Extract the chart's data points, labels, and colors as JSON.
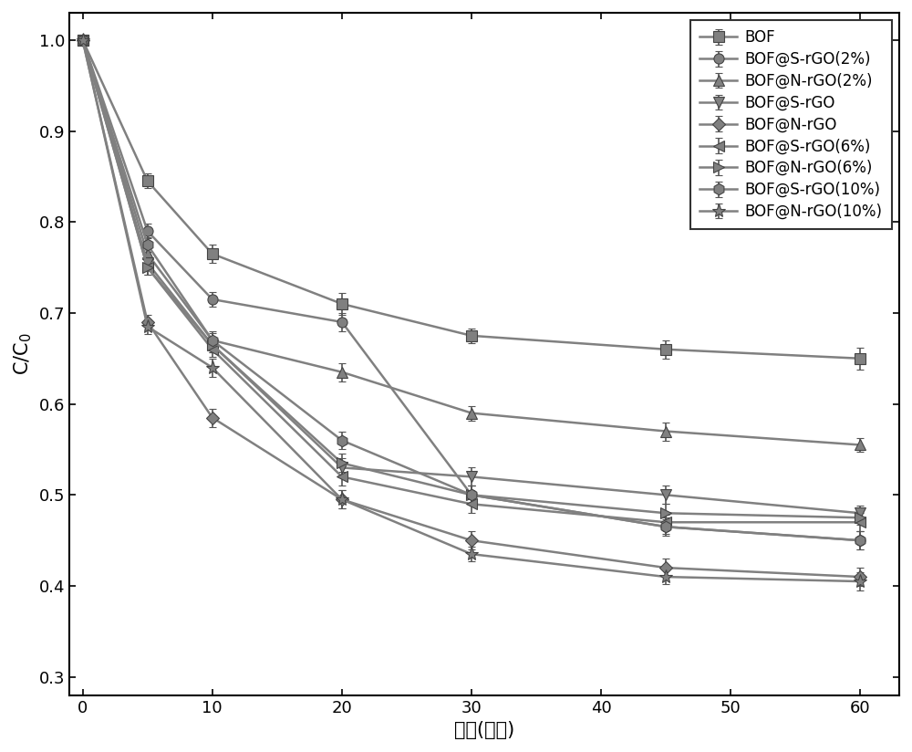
{
  "x": [
    0,
    5,
    10,
    20,
    30,
    45,
    60
  ],
  "series": [
    {
      "label": "BOF",
      "y": [
        1.0,
        0.845,
        0.765,
        0.71,
        0.675,
        0.66,
        0.65
      ],
      "yerr": [
        0.0,
        0.008,
        0.01,
        0.012,
        0.008,
        0.01,
        0.012
      ],
      "marker": "s",
      "markersize": 8
    },
    {
      "label": "BOF@S-rGO(2%)",
      "y": [
        1.0,
        0.79,
        0.715,
        0.69,
        0.5,
        0.465,
        0.45
      ],
      "yerr": [
        0.0,
        0.008,
        0.008,
        0.01,
        0.01,
        0.008,
        0.01
      ],
      "marker": "o",
      "markersize": 8
    },
    {
      "label": "BOF@N-rGO(2%)",
      "y": [
        1.0,
        0.765,
        0.67,
        0.635,
        0.59,
        0.57,
        0.555
      ],
      "yerr": [
        0.0,
        0.008,
        0.008,
        0.01,
        0.008,
        0.01,
        0.008
      ],
      "marker": "^",
      "markersize": 8
    },
    {
      "label": "BOF@S-rGO",
      "y": [
        1.0,
        0.755,
        0.665,
        0.53,
        0.52,
        0.5,
        0.48
      ],
      "yerr": [
        0.0,
        0.008,
        0.008,
        0.01,
        0.01,
        0.01,
        0.008
      ],
      "marker": "v",
      "markersize": 8
    },
    {
      "label": "BOF@N-rGO",
      "y": [
        1.0,
        0.69,
        0.585,
        0.495,
        0.45,
        0.42,
        0.41
      ],
      "yerr": [
        0.0,
        0.008,
        0.01,
        0.01,
        0.01,
        0.01,
        0.01
      ],
      "marker": "D",
      "markersize": 7
    },
    {
      "label": "BOF@S-rGO(6%)",
      "y": [
        1.0,
        0.75,
        0.66,
        0.52,
        0.49,
        0.47,
        0.47
      ],
      "yerr": [
        0.0,
        0.008,
        0.008,
        0.01,
        0.01,
        0.008,
        0.01
      ],
      "marker": "<",
      "markersize": 8
    },
    {
      "label": "BOF@N-rGO(6%)",
      "y": [
        1.0,
        0.75,
        0.665,
        0.535,
        0.5,
        0.48,
        0.475
      ],
      "yerr": [
        0.0,
        0.008,
        0.008,
        0.01,
        0.01,
        0.01,
        0.008
      ],
      "marker": ">",
      "markersize": 8
    },
    {
      "label": "BOF@S-rGO(10%)",
      "y": [
        1.0,
        0.775,
        0.67,
        0.56,
        0.5,
        0.465,
        0.45
      ],
      "yerr": [
        0.0,
        0.008,
        0.01,
        0.01,
        0.01,
        0.01,
        0.01
      ],
      "marker": "h",
      "markersize": 9
    },
    {
      "label": "BOF@N-rGO(10%)",
      "y": [
        1.0,
        0.685,
        0.64,
        0.495,
        0.435,
        0.41,
        0.405
      ],
      "yerr": [
        0.0,
        0.008,
        0.01,
        0.01,
        0.008,
        0.008,
        0.01
      ],
      "marker": "*",
      "markersize": 11
    }
  ],
  "xlabel": "时间(分钟)",
  "ylabel": "C/C$_0$",
  "xlim": [
    -1,
    63
  ],
  "ylim": [
    0.28,
    1.03
  ],
  "xticks": [
    0,
    10,
    20,
    30,
    40,
    50,
    60
  ],
  "yticks": [
    0.3,
    0.4,
    0.5,
    0.6,
    0.7,
    0.8,
    0.9,
    1.0
  ],
  "line_color": "#808080",
  "line_width": 1.8,
  "background_color": "#ffffff",
  "legend_fontsize": 12,
  "axis_fontsize": 15,
  "tick_fontsize": 13
}
